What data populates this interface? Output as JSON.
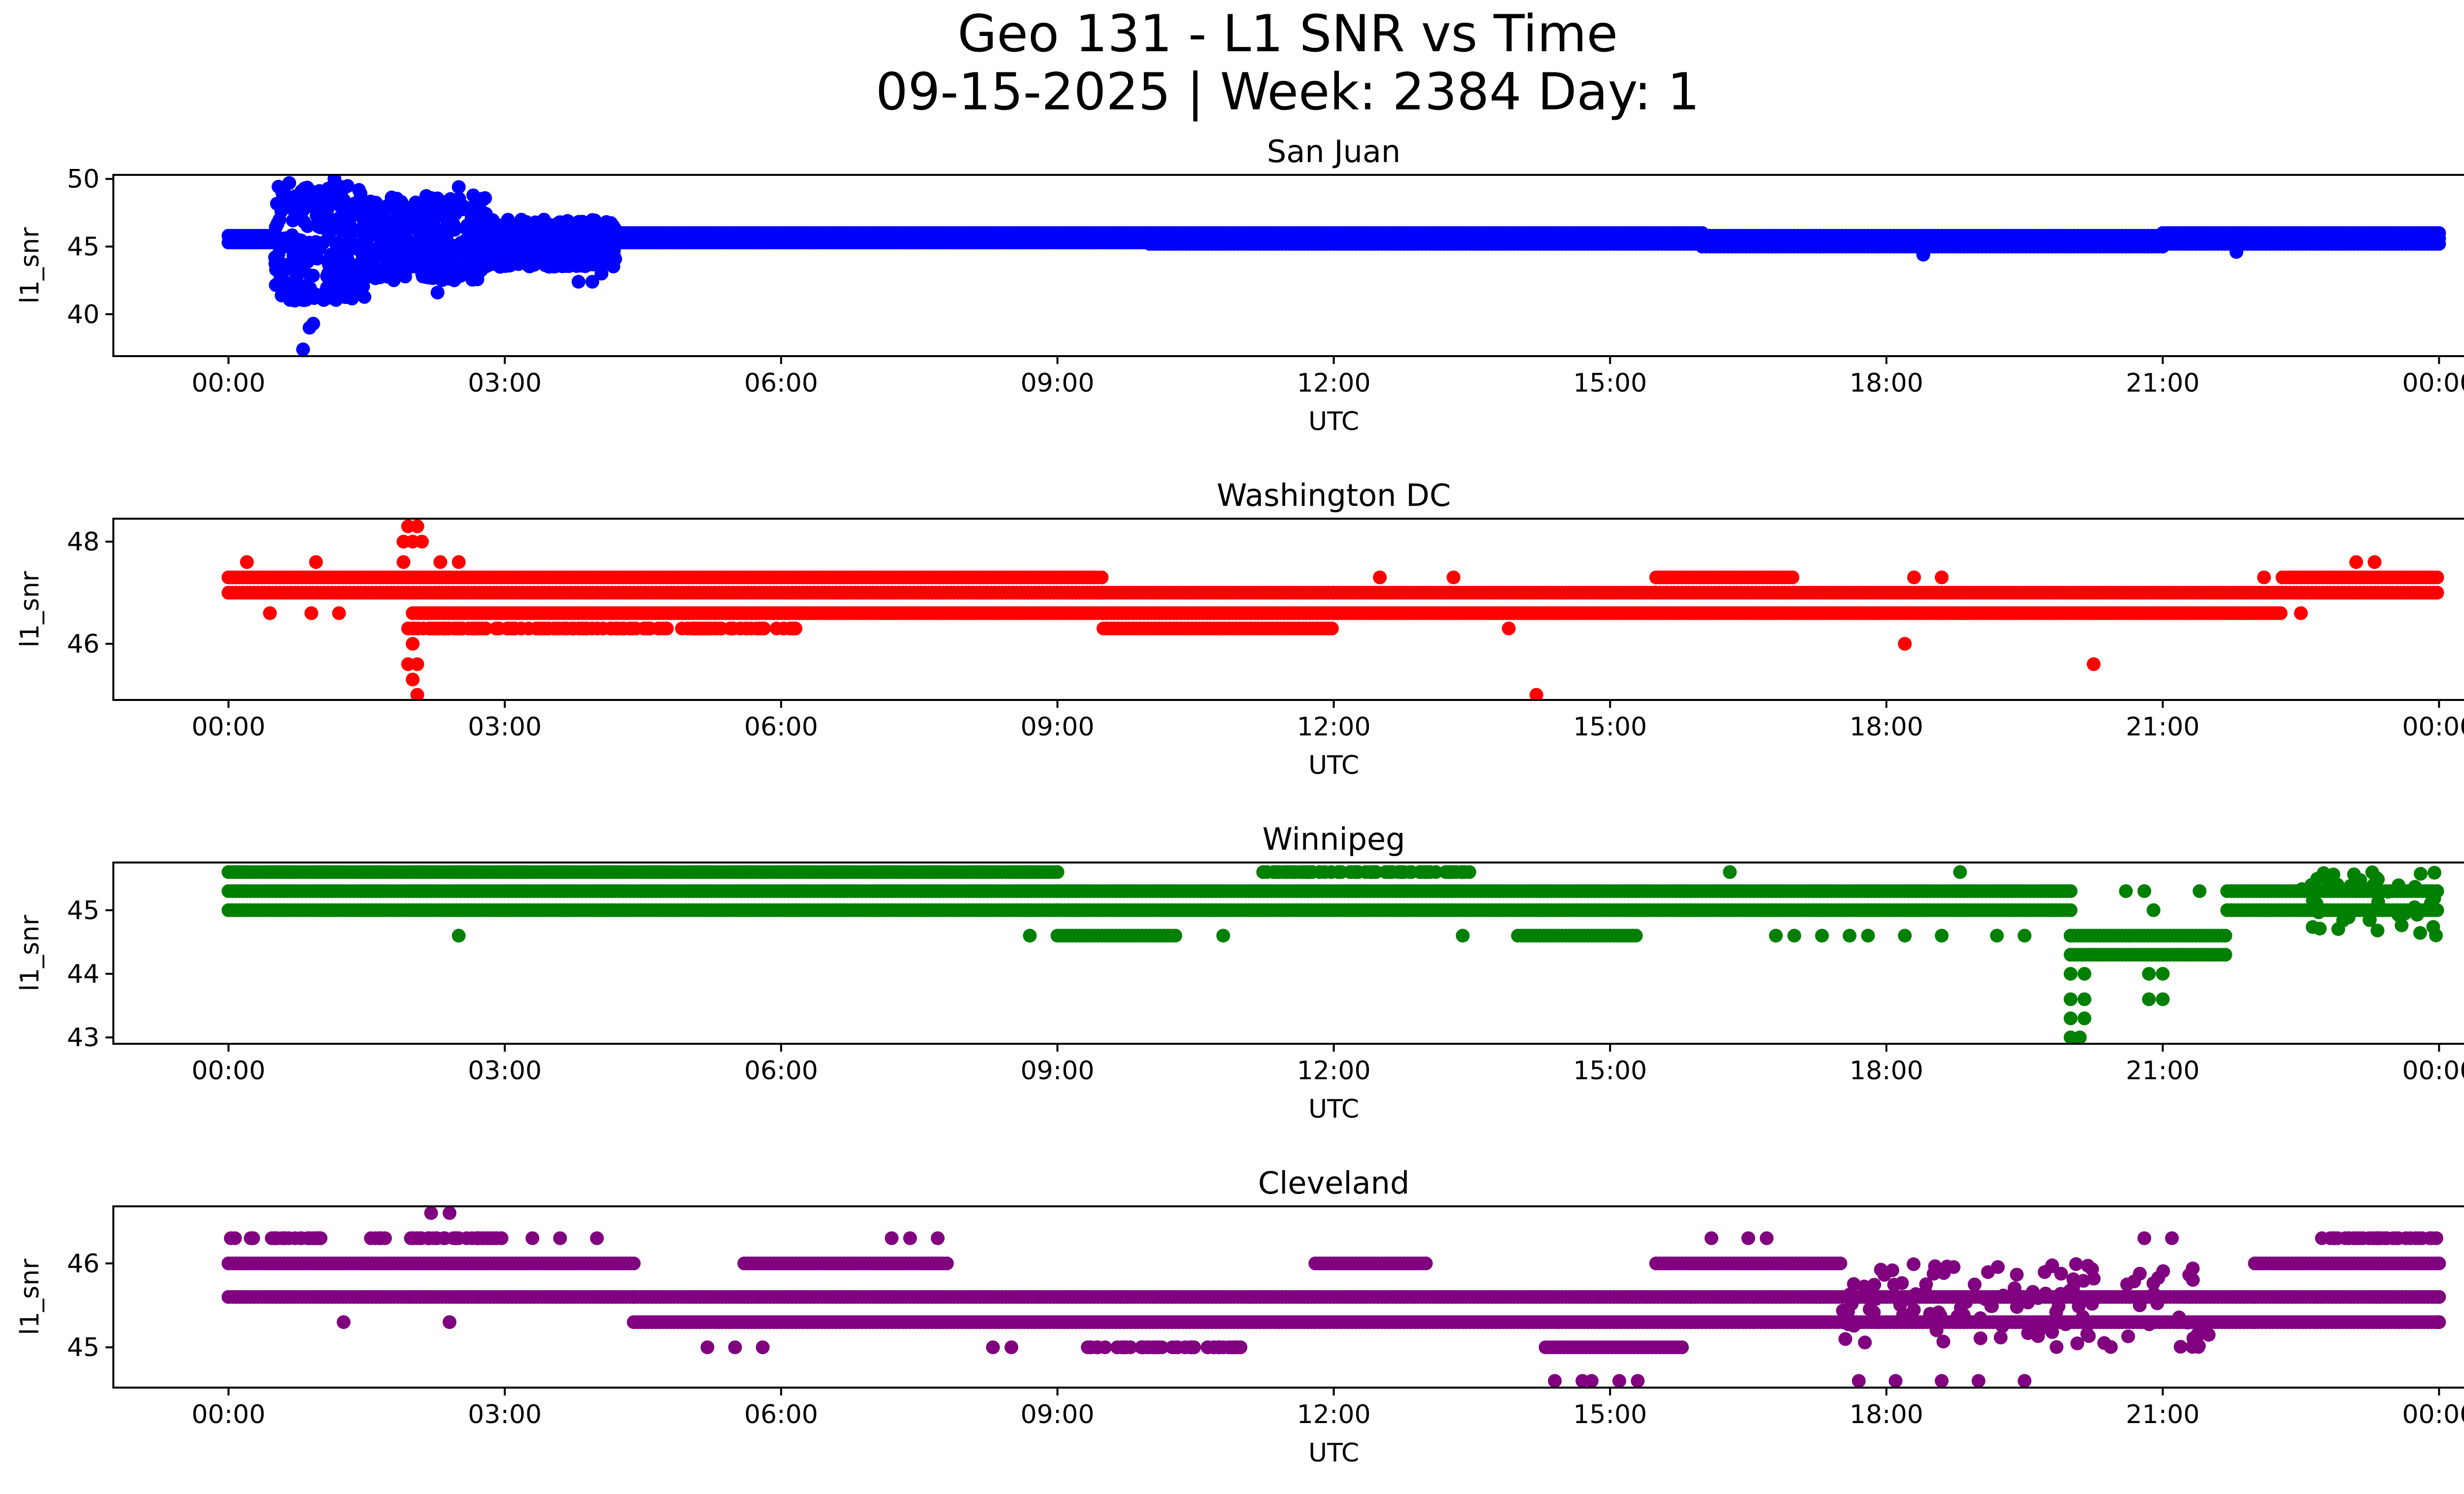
{
  "figure": {
    "title_line1": "Geo 131 - L1 SNR vs Time",
    "title_line2": "09-15-2025 | Week: 2384 Day: 1"
  },
  "chart_data": [
    {
      "type": "scatter",
      "title": "San Juan",
      "xlabel": "UTC",
      "ylabel": "l1_snr",
      "color": "#0000ff",
      "xlim_hours": [
        -1.25,
        25.25
      ],
      "ylim": [
        36.9,
        50.3
      ],
      "xtick_labels": [
        "00:00",
        "03:00",
        "06:00",
        "09:00",
        "12:00",
        "15:00",
        "18:00",
        "21:00",
        "00:00"
      ],
      "yticks": [
        40,
        45,
        50
      ],
      "bands": [
        {
          "from": 0.0,
          "to": 0.55,
          "values": [
            45.3,
            45.8
          ]
        },
        {
          "from": 4.2,
          "to": 10.0,
          "values": [
            45.3,
            45.8,
            46.0
          ]
        },
        {
          "from": 10.0,
          "to": 16.0,
          "values": [
            45.2,
            45.6,
            46.0
          ]
        },
        {
          "from": 16.0,
          "to": 21.0,
          "values": [
            45.0,
            45.4,
            45.8
          ]
        },
        {
          "from": 21.0,
          "to": 24.0,
          "values": [
            45.2,
            45.6,
            46.0
          ]
        }
      ],
      "scatter_regions": [
        {
          "from": 0.5,
          "to": 1.5,
          "min": 41.0,
          "max": 49.5
        },
        {
          "from": 1.5,
          "to": 2.8,
          "min": 42.5,
          "max": 48.8
        },
        {
          "from": 2.8,
          "to": 4.2,
          "min": 43.5,
          "max": 47.0
        }
      ],
      "points": [
        [
          0.81,
          37.4
        ],
        [
          0.92,
          39.3
        ],
        [
          0.88,
          39.0
        ],
        [
          0.72,
          41.0
        ],
        [
          0.66,
          49.7
        ],
        [
          1.15,
          50.0
        ],
        [
          2.5,
          49.4
        ],
        [
          3.8,
          42.4
        ],
        [
          3.95,
          42.4
        ],
        [
          2.27,
          41.6
        ],
        [
          4.05,
          43.0
        ],
        [
          18.4,
          44.4
        ],
        [
          21.8,
          44.6
        ]
      ]
    },
    {
      "type": "scatter",
      "title": "Washington DC",
      "xlabel": "UTC",
      "ylabel": "l1_snr",
      "color": "#ff0000",
      "xlim_hours": [
        -1.25,
        25.25
      ],
      "ylim": [
        44.9,
        48.45
      ],
      "xtick_labels": [
        "00:00",
        "03:00",
        "06:00",
        "09:00",
        "12:00",
        "15:00",
        "18:00",
        "21:00",
        "00:00"
      ],
      "yticks": [
        46,
        48
      ],
      "bands": [
        {
          "from": 0.0,
          "to": 9.5,
          "values": [
            47.0,
            47.3
          ]
        },
        {
          "from": 2.0,
          "to": 6.2,
          "values": [
            46.6
          ]
        },
        {
          "from": 6.2,
          "to": 9.5,
          "values": [
            46.6,
            47.0
          ]
        },
        {
          "from": 9.5,
          "to": 12.0,
          "values": [
            46.3,
            46.6,
            47.0
          ]
        },
        {
          "from": 12.0,
          "to": 15.5,
          "values": [
            46.6,
            47.0
          ]
        },
        {
          "from": 15.5,
          "to": 17.0,
          "values": [
            46.6,
            47.0,
            47.3
          ]
        },
        {
          "from": 17.0,
          "to": 22.3,
          "values": [
            46.6,
            47.0
          ]
        },
        {
          "from": 22.3,
          "to": 24.0,
          "values": [
            47.0,
            47.3
          ]
        }
      ],
      "scatter_regions": [
        {
          "from": 2.0,
          "to": 6.2,
          "min": 46.3,
          "max": 46.3
        }
      ],
      "points": [
        [
          0.2,
          47.6
        ],
        [
          0.45,
          46.6
        ],
        [
          0.9,
          46.6
        ],
        [
          0.95,
          47.6
        ],
        [
          1.2,
          46.6
        ],
        [
          1.95,
          48.3
        ],
        [
          2.05,
          48.3
        ],
        [
          1.9,
          48.0
        ],
        [
          2.0,
          48.0
        ],
        [
          2.1,
          48.0
        ],
        [
          1.9,
          47.6
        ],
        [
          2.3,
          47.6
        ],
        [
          2.5,
          47.6
        ],
        [
          1.95,
          46.3
        ],
        [
          2.0,
          46.0
        ],
        [
          1.95,
          45.6
        ],
        [
          2.05,
          45.6
        ],
        [
          2.0,
          45.3
        ],
        [
          2.05,
          45.0
        ],
        [
          12.5,
          47.3
        ],
        [
          13.3,
          47.3
        ],
        [
          14.2,
          45.0
        ],
        [
          15.6,
          47.3
        ],
        [
          18.2,
          46.0
        ],
        [
          18.3,
          47.3
        ],
        [
          18.6,
          47.3
        ],
        [
          20.25,
          45.6
        ],
        [
          22.1,
          47.3
        ],
        [
          22.5,
          46.6
        ],
        [
          23.1,
          47.6
        ],
        [
          23.3,
          47.6
        ],
        [
          10.8,
          46.3
        ],
        [
          13.9,
          46.3
        ]
      ]
    },
    {
      "type": "scatter",
      "title": "Winnipeg",
      "xlabel": "UTC",
      "ylabel": "l1_snr",
      "color": "#008000",
      "xlim_hours": [
        -1.25,
        25.25
      ],
      "ylim": [
        42.9,
        45.75
      ],
      "xtick_labels": [
        "00:00",
        "03:00",
        "06:00",
        "09:00",
        "12:00",
        "15:00",
        "18:00",
        "21:00",
        "00:00"
      ],
      "yticks": [
        43,
        44,
        45
      ],
      "bands": [
        {
          "from": 0.0,
          "to": 9.0,
          "values": [
            45.0,
            45.3,
            45.6
          ]
        },
        {
          "from": 9.0,
          "to": 20.0,
          "values": [
            45.0,
            45.3
          ]
        },
        {
          "from": 9.0,
          "to": 10.3,
          "values": [
            44.6
          ]
        },
        {
          "from": 14.0,
          "to": 15.3,
          "values": [
            44.6
          ]
        },
        {
          "from": 20.0,
          "to": 21.7,
          "values": [
            44.3,
            44.6
          ]
        },
        {
          "from": 21.7,
          "to": 24.0,
          "values": [
            45.0,
            45.3
          ]
        }
      ],
      "scatter_regions": [
        {
          "from": 11.2,
          "to": 13.5,
          "min": 45.6,
          "max": 45.6
        },
        {
          "from": 22.5,
          "to": 24.0,
          "min": 44.6,
          "max": 45.6
        }
      ],
      "points": [
        [
          2.5,
          44.6
        ],
        [
          8.7,
          44.6
        ],
        [
          10.8,
          44.6
        ],
        [
          13.4,
          44.6
        ],
        [
          16.3,
          45.6
        ],
        [
          16.8,
          44.6
        ],
        [
          17.0,
          44.6
        ],
        [
          17.3,
          44.6
        ],
        [
          17.6,
          44.6
        ],
        [
          17.8,
          44.6
        ],
        [
          18.2,
          44.6
        ],
        [
          18.6,
          44.6
        ],
        [
          18.8,
          45.6
        ],
        [
          19.2,
          44.6
        ],
        [
          19.5,
          44.6
        ],
        [
          20.0,
          44.0
        ],
        [
          20.0,
          43.6
        ],
        [
          20.0,
          43.3
        ],
        [
          20.0,
          43.0
        ],
        [
          20.15,
          44.0
        ],
        [
          20.15,
          43.6
        ],
        [
          20.15,
          43.3
        ],
        [
          20.1,
          43.0
        ],
        [
          20.6,
          45.3
        ],
        [
          20.8,
          45.3
        ],
        [
          20.9,
          45.0
        ],
        [
          20.85,
          44.0
        ],
        [
          21.0,
          44.0
        ],
        [
          20.85,
          43.6
        ],
        [
          21.0,
          43.6
        ],
        [
          21.4,
          45.3
        ],
        [
          21.9,
          45.3
        ]
      ]
    },
    {
      "type": "scatter",
      "title": "Cleveland",
      "xlabel": "UTC",
      "ylabel": "l1_snr",
      "color": "#800080",
      "xlim_hours": [
        -1.25,
        25.25
      ],
      "ylim": [
        44.52,
        46.68
      ],
      "xtick_labels": [
        "00:00",
        "03:00",
        "06:00",
        "09:00",
        "12:00",
        "15:00",
        "18:00",
        "21:00",
        "00:00"
      ],
      "yticks": [
        45,
        46
      ],
      "bands": [
        {
          "from": 0.0,
          "to": 4.4,
          "values": [
            46.0
          ]
        },
        {
          "from": 0.0,
          "to": 4.4,
          "values": [
            45.6
          ]
        },
        {
          "from": 4.4,
          "to": 24.0,
          "values": [
            45.6,
            45.3
          ]
        },
        {
          "from": 5.6,
          "to": 7.8,
          "values": [
            46.0
          ]
        },
        {
          "from": 11.8,
          "to": 13.0,
          "values": [
            46.0
          ]
        },
        {
          "from": 15.5,
          "to": 17.5,
          "values": [
            46.0
          ]
        },
        {
          "from": 14.3,
          "to": 15.8,
          "values": [
            45.0
          ]
        },
        {
          "from": 22.0,
          "to": 24.0,
          "values": [
            46.0
          ]
        }
      ],
      "scatter_regions": [
        {
          "from": 0.0,
          "to": 1.0,
          "min": 46.3,
          "max": 46.3
        },
        {
          "from": 1.5,
          "to": 3.0,
          "min": 46.3,
          "max": 46.3
        },
        {
          "from": 9.3,
          "to": 11.0,
          "min": 45.0,
          "max": 45.0
        },
        {
          "from": 17.5,
          "to": 21.5,
          "min": 45.0,
          "max": 46.0
        },
        {
          "from": 22.6,
          "to": 24.0,
          "min": 46.3,
          "max": 46.3
        }
      ],
      "points": [
        [
          2.2,
          46.6
        ],
        [
          2.4,
          46.6
        ],
        [
          0.6,
          46.3
        ],
        [
          1.0,
          46.3
        ],
        [
          3.3,
          46.3
        ],
        [
          3.6,
          46.3
        ],
        [
          4.0,
          46.3
        ],
        [
          7.2,
          46.3
        ],
        [
          7.4,
          46.3
        ],
        [
          7.7,
          46.3
        ],
        [
          1.25,
          45.3
        ],
        [
          2.4,
          45.3
        ],
        [
          5.2,
          45.0
        ],
        [
          5.5,
          45.0
        ],
        [
          5.8,
          45.0
        ],
        [
          8.3,
          45.0
        ],
        [
          8.5,
          45.0
        ],
        [
          14.4,
          44.6
        ],
        [
          14.7,
          44.6
        ],
        [
          14.8,
          44.6
        ],
        [
          15.1,
          44.6
        ],
        [
          15.3,
          44.6
        ],
        [
          17.7,
          44.6
        ],
        [
          18.1,
          44.6
        ],
        [
          18.6,
          44.6
        ],
        [
          19.0,
          44.6
        ],
        [
          19.5,
          44.6
        ],
        [
          16.1,
          46.3
        ],
        [
          16.5,
          46.3
        ],
        [
          16.7,
          46.3
        ],
        [
          20.8,
          46.3
        ],
        [
          21.1,
          46.3
        ],
        [
          23.98,
          45.3
        ]
      ]
    }
  ]
}
